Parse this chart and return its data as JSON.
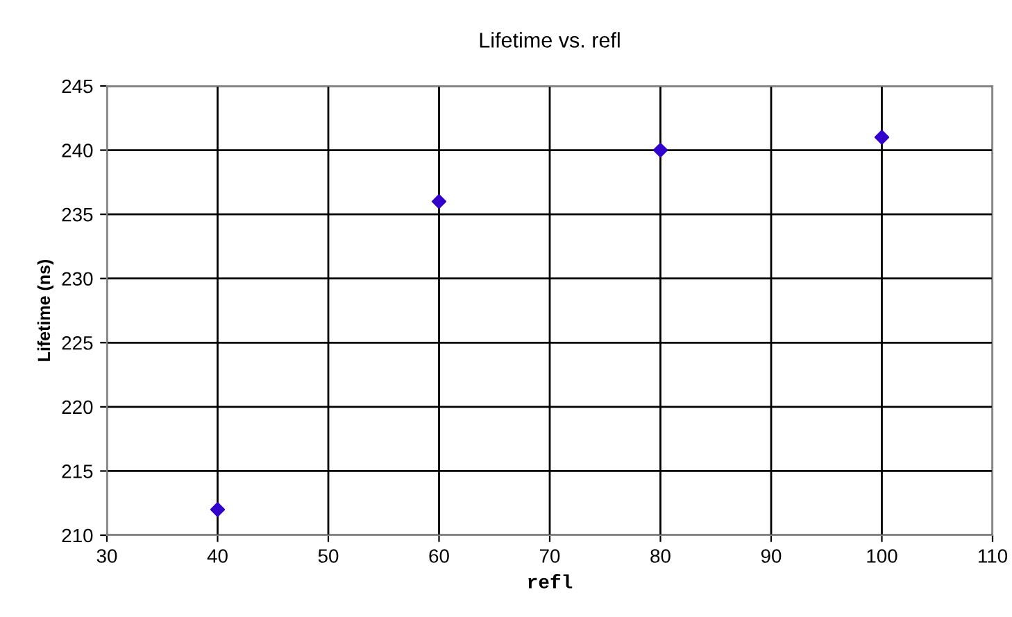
{
  "chart_data": {
    "type": "scatter",
    "title": "Lifetime vs. refl",
    "xlabel": "refl",
    "ylabel": "Lifetime (ns)",
    "x": [
      40,
      60,
      80,
      100
    ],
    "series": [
      {
        "color": "#3300cc",
        "values": [
          212,
          236,
          240,
          241
        ]
      }
    ],
    "xlim": [
      30,
      110
    ],
    "xticks": [
      30,
      40,
      50,
      60,
      70,
      80,
      90,
      100,
      110
    ],
    "ylim": [
      210,
      245
    ],
    "yticks": [
      210,
      215,
      220,
      225,
      230,
      235,
      240,
      245
    ],
    "grid": true,
    "marker": "diamond",
    "legend": false
  }
}
